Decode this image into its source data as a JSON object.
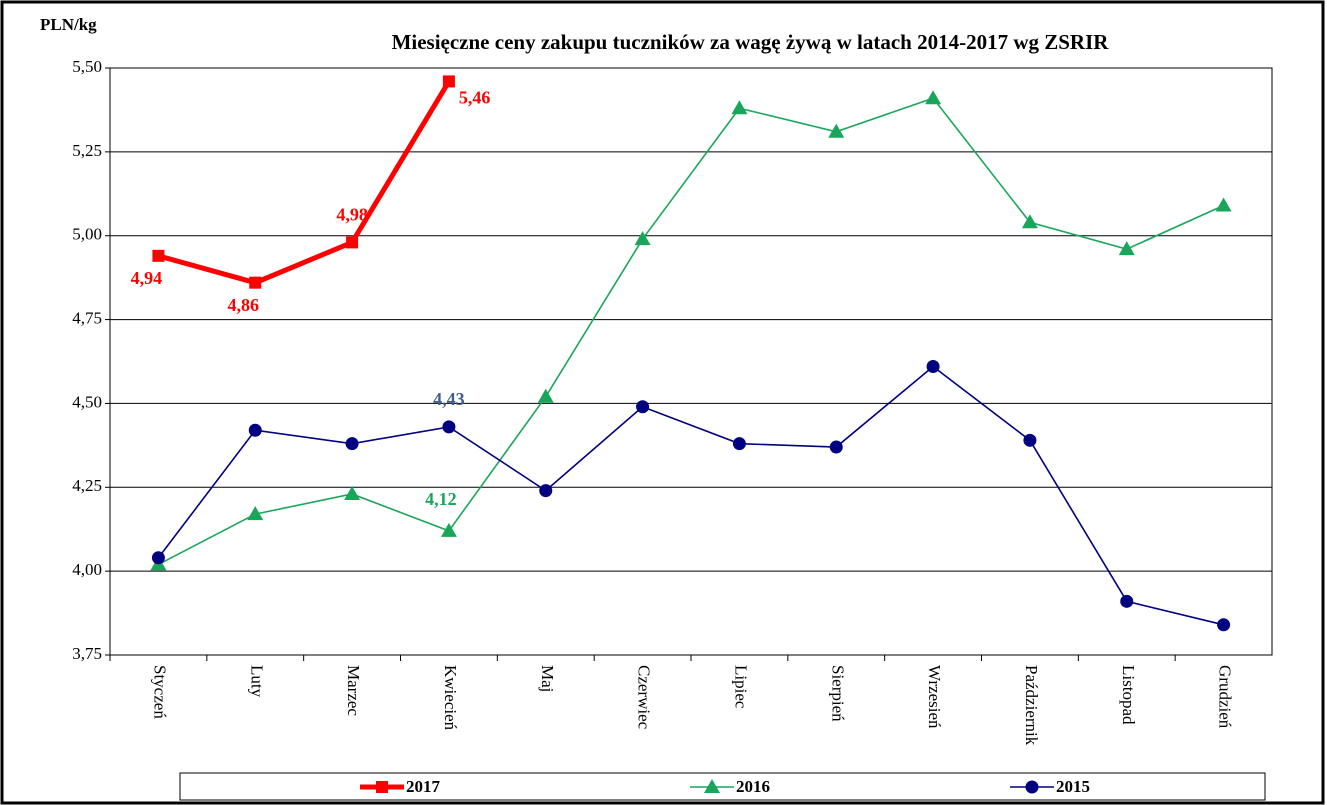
{
  "chart_data": {
    "type": "line",
    "title": "Miesięczne ceny zakupu tuczników za wagę żywą w latach 2014-2017  wg ZSRIR",
    "y_label": "PLN/kg",
    "categories": [
      "Styczeń",
      "Luty",
      "Marzec",
      "Kwiecień",
      "Maj",
      "Czerwiec",
      "Lipiec",
      "Sierpień",
      "Wrzesień",
      "Październik",
      "Listopad",
      "Grudzień"
    ],
    "series": [
      {
        "name": "2017",
        "color": "#ff0000",
        "marker": "square",
        "values": [
          4.94,
          4.86,
          4.98,
          5.46,
          null,
          null,
          null,
          null,
          null,
          null,
          null,
          null
        ],
        "value_labels": [
          "4,94",
          "4,86",
          "4,98",
          "5,46",
          null,
          null,
          null,
          null,
          null,
          null,
          null,
          null
        ]
      },
      {
        "name": "2016",
        "color": "#1aa65a",
        "marker": "triangle",
        "values": [
          4.02,
          4.17,
          4.23,
          4.12,
          4.52,
          4.99,
          5.38,
          5.31,
          5.41,
          5.04,
          4.96,
          5.09
        ],
        "value_labels": [
          null,
          null,
          null,
          "4,12",
          null,
          null,
          null,
          null,
          null,
          null,
          null,
          null
        ]
      },
      {
        "name": "2015",
        "color": "#000080",
        "marker": "circle",
        "values": [
          4.04,
          4.42,
          4.38,
          4.43,
          4.24,
          4.49,
          4.38,
          4.37,
          4.61,
          4.39,
          3.91,
          3.84
        ],
        "value_labels": [
          null,
          null,
          null,
          "4,43",
          null,
          null,
          null,
          null,
          null,
          null,
          null,
          null
        ]
      }
    ],
    "ylim": [
      3.75,
      5.5
    ],
    "yticks": [
      {
        "value": 3.75,
        "label": "3,75"
      },
      {
        "value": 4,
        "label": "4,00"
      },
      {
        "value": 4.25,
        "label": "4,25"
      },
      {
        "value": 4.5,
        "label": "4,50"
      },
      {
        "value": 4.75,
        "label": "4,75"
      },
      {
        "value": 5,
        "label": "5,00"
      },
      {
        "value": 5.25,
        "label": "5,25"
      },
      {
        "value": 5.5,
        "label": "5,50"
      }
    ],
    "grid": true,
    "legend": "bottom"
  }
}
